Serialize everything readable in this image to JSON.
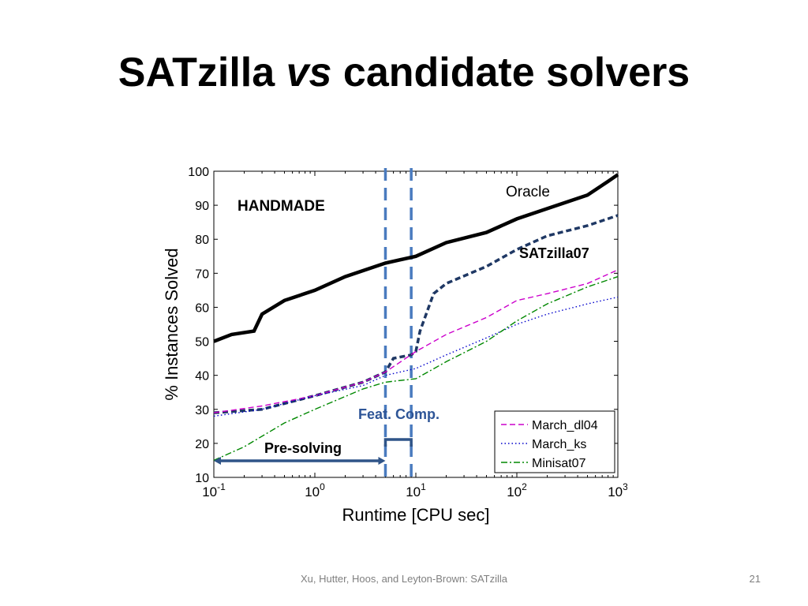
{
  "slide": {
    "title_part1": "SATzilla ",
    "title_italic": "vs",
    "title_part2": " candidate solvers",
    "footer": "Xu, Hutter, Hoos, and Leyton-Brown: SATzilla",
    "page_number": "21"
  },
  "chart_data": {
    "type": "line",
    "title": "",
    "xlabel": "Runtime [CPU sec]",
    "ylabel": "% Instances Solved",
    "x_scale": "log",
    "xlim": [
      0.1,
      1000
    ],
    "ylim": [
      10,
      100
    ],
    "x_ticks": [
      {
        "value": 0.1,
        "base": "10",
        "exp": "-1"
      },
      {
        "value": 1,
        "base": "10",
        "exp": "0"
      },
      {
        "value": 10,
        "base": "10",
        "exp": "1"
      },
      {
        "value": 100,
        "base": "10",
        "exp": "2"
      },
      {
        "value": 1000,
        "base": "10",
        "exp": "3"
      }
    ],
    "y_ticks": [
      10,
      20,
      30,
      40,
      50,
      60,
      70,
      80,
      90,
      100
    ],
    "grid": false,
    "legend_position": "bottom-right",
    "series": [
      {
        "name": "Oracle",
        "color": "#000000",
        "style": "solid",
        "x": [
          0.1,
          0.15,
          0.25,
          0.3,
          0.5,
          1,
          2,
          5,
          10,
          20,
          50,
          100,
          200,
          500,
          800,
          1000
        ],
        "y": [
          50,
          52,
          53,
          58,
          62,
          65,
          69,
          73,
          75,
          79,
          82,
          86,
          89,
          93,
          97,
          99
        ]
      },
      {
        "name": "SATzilla07",
        "color": "#1f3864",
        "style": "dashed",
        "x": [
          0.1,
          0.3,
          1,
          3,
          5,
          6,
          9,
          10,
          11,
          15,
          20,
          50,
          100,
          200,
          500,
          1000
        ],
        "y": [
          29,
          30,
          34,
          38,
          41,
          45,
          46,
          47,
          53,
          64,
          67,
          72,
          77,
          81,
          84,
          87
        ]
      },
      {
        "name": "March_dl04",
        "color": "#cc00cc",
        "style": "dashed",
        "x": [
          0.1,
          0.3,
          1,
          3,
          5,
          10,
          20,
          50,
          100,
          200,
          500,
          1000
        ],
        "y": [
          29,
          31,
          34,
          38,
          41,
          47,
          52,
          57,
          62,
          64,
          67,
          71
        ]
      },
      {
        "name": "March_ks",
        "color": "#0000cc",
        "style": "dotted",
        "x": [
          0.1,
          0.3,
          1,
          3,
          5,
          10,
          20,
          50,
          100,
          200,
          500,
          1000
        ],
        "y": [
          28,
          30,
          34,
          37,
          40,
          42,
          46,
          51,
          55,
          58,
          61,
          63
        ]
      },
      {
        "name": "Minisat07",
        "color": "#008800",
        "style": "dashdot",
        "x": [
          0.1,
          0.2,
          0.5,
          1,
          3,
          5,
          10,
          20,
          50,
          100,
          200,
          500,
          1000
        ],
        "y": [
          15,
          19,
          26,
          30,
          36,
          38,
          39,
          44,
          50,
          56,
          61,
          66,
          69
        ]
      }
    ],
    "vertical_lines": [
      5,
      9
    ],
    "annotations": {
      "panel_label": "HANDMADE",
      "oracle_label": "Oracle",
      "satzilla_label": "SATzilla07",
      "feat_comp": "Feat. Comp.",
      "pre_solving": "Pre-solving"
    },
    "legend_entries": [
      "March_dl04",
      "March_ks",
      "Minisat07"
    ]
  }
}
